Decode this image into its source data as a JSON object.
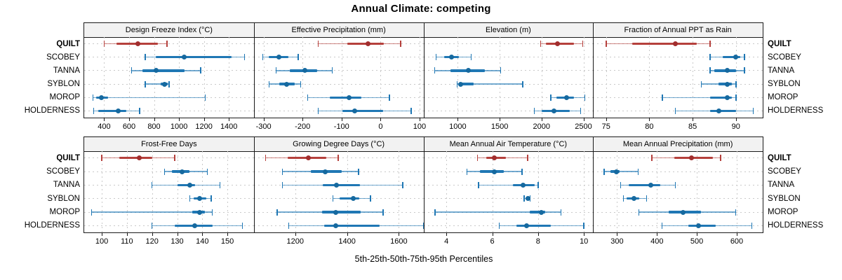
{
  "title": "Annual Climate: competing",
  "caption": "5th-25th-50th-75th-95th Percentiles",
  "sites": [
    "QUILT",
    "SCOBEY",
    "TANNA",
    "SYBLON",
    "MOROP",
    "HOLDERNESS"
  ],
  "highlight_site": "QUILT",
  "colors": {
    "highlight": "#b5403c",
    "highlight_dot": "#a12e2e",
    "normal": "#1f77b4",
    "normal_dot": "#16699f",
    "strip_bg": "#f2f2f2",
    "grid": "#c9c9c9",
    "border": "#1a1a1a"
  },
  "chart_data": {
    "type": "dotplot-percentiles",
    "layout": "2 rows x 4 columns trellis, sites on y-axis of every panel, shared site labels on outer left and right edges",
    "percentile_labels": [
      "5th",
      "25th",
      "50th",
      "75th",
      "95th"
    ],
    "rows": [
      "QUILT",
      "SCOBEY",
      "TANNA",
      "SYBLON",
      "MOROP",
      "HOLDERNESS"
    ],
    "panels": [
      {
        "title": "Design Freeze Index (°C)",
        "xlim": [
          240,
          1600
        ],
        "ticks": [
          400,
          600,
          800,
          1000,
          1200,
          1400
        ],
        "series": [
          {
            "name": "QUILT",
            "values": [
              400,
              500,
              670,
              830,
              905
            ]
          },
          {
            "name": "SCOBEY",
            "values": [
              730,
              815,
              1040,
              1420,
              1525
            ]
          },
          {
            "name": "TANNA",
            "values": [
              620,
              705,
              815,
              1045,
              1175
            ]
          },
          {
            "name": "SYBLON",
            "values": [
              730,
              855,
              885,
              910,
              920
            ]
          },
          {
            "name": "MOROP",
            "values": [
              310,
              335,
              375,
              430,
              1210
            ]
          },
          {
            "name": "HOLDERNESS",
            "values": [
              315,
              355,
              510,
              580,
              685
            ]
          }
        ]
      },
      {
        "title": "Effective Precipitation (mm)",
        "xlim": [
          -325,
          110
        ],
        "ticks": [
          -300,
          -200,
          -100,
          0,
          100
        ],
        "series": [
          {
            "name": "QUILT",
            "values": [
              -160,
              -85,
              -32,
              8,
              52
            ]
          },
          {
            "name": "SCOBEY",
            "values": [
              -302,
              -286,
              -261,
              -236,
              -211
            ]
          },
          {
            "name": "TANNA",
            "values": [
              -268,
              -232,
              -194,
              -163,
              -124
            ]
          },
          {
            "name": "SYBLON",
            "values": [
              -286,
              -259,
              -241,
              -220,
              -205
            ]
          },
          {
            "name": "MOROP",
            "values": [
              -187,
              -130,
              -81,
              -49,
              23
            ]
          },
          {
            "name": "HOLDERNESS",
            "values": [
              -160,
              -97,
              -67,
              7,
              79
            ]
          }
        ]
      },
      {
        "title": "Elevation (m)",
        "xlim": [
          590,
          2615
        ],
        "ticks": [
          1000,
          1500,
          2000,
          2500
        ],
        "series": [
          {
            "name": "QUILT",
            "values": [
              1990,
              2050,
              2190,
              2385,
              2490
            ]
          },
          {
            "name": "SCOBEY",
            "values": [
              740,
              840,
              925,
              1010,
              1160
            ]
          },
          {
            "name": "TANNA",
            "values": [
              725,
              910,
              1125,
              1325,
              1510
            ]
          },
          {
            "name": "SYBLON",
            "values": [
              990,
              1010,
              1035,
              1190,
              1775
            ]
          },
          {
            "name": "MOROP",
            "values": [
              2110,
              2175,
              2300,
              2385,
              2515
            ]
          },
          {
            "name": "HOLDERNESS",
            "values": [
              1915,
              2000,
              2150,
              2340,
              2465
            ]
          }
        ]
      },
      {
        "title": "Fraction of Annual PPT as Rain",
        "xlim": [
          73.5,
          93.1
        ],
        "ticks": [
          75,
          80,
          85,
          90
        ],
        "series": [
          {
            "name": "QUILT",
            "values": [
              75,
              78,
              83,
              85.5,
              87
            ]
          },
          {
            "name": "SCOBEY",
            "values": [
              87,
              88.5,
              90,
              90.5,
              91
            ]
          },
          {
            "name": "TANNA",
            "values": [
              87,
              87.5,
              89,
              90,
              91
            ]
          },
          {
            "name": "SYBLON",
            "values": [
              86,
              88,
              89,
              89.5,
              90
            ]
          },
          {
            "name": "MOROP",
            "values": [
              81.5,
              87,
              89,
              89.5,
              90
            ]
          },
          {
            "name": "HOLDERNESS",
            "values": [
              83,
              87,
              88,
              90,
              92
            ]
          }
        ]
      },
      {
        "title": "Frost-Free Days",
        "xlim": [
          93,
          160.5
        ],
        "ticks": [
          100,
          110,
          120,
          130,
          140,
          150
        ],
        "series": [
          {
            "name": "QUILT",
            "values": [
              100,
              107,
              115,
              120,
              129
            ]
          },
          {
            "name": "SCOBEY",
            "values": [
              125,
              128,
              132,
              135,
              142
            ]
          },
          {
            "name": "TANNA",
            "values": [
              120,
              130,
              135,
              137,
              147
            ]
          },
          {
            "name": "SYBLON",
            "values": [
              135,
              136.5,
              139,
              141.5,
              143.5
            ]
          },
          {
            "name": "MOROP",
            "values": [
              96,
              136,
              139,
              141,
              144
            ]
          },
          {
            "name": "HOLDERNESS",
            "values": [
              120,
              129,
              137,
              144,
              156
            ]
          }
        ]
      },
      {
        "title": "Growing Degree Days (°C)",
        "xlim": [
          1040,
          1695
        ],
        "ticks": [
          1200,
          1400,
          1600
        ],
        "series": [
          {
            "name": "QUILT",
            "values": [
              1085,
              1170,
              1250,
              1320,
              1365
            ]
          },
          {
            "name": "SCOBEY",
            "values": [
              1150,
              1260,
              1315,
              1380,
              1445
            ]
          },
          {
            "name": "TANNA",
            "values": [
              1150,
              1305,
              1360,
              1450,
              1615
            ]
          },
          {
            "name": "SYBLON",
            "values": [
              1345,
              1372,
              1425,
              1448,
              1490
            ]
          },
          {
            "name": "MOROP",
            "values": [
              1130,
              1303,
              1356,
              1452,
              1540
            ]
          },
          {
            "name": "HOLDERNESS",
            "values": [
              1175,
              1312,
              1355,
              1525,
              1695
            ]
          }
        ]
      },
      {
        "title": "Mean Annual Air Temperature (°C)",
        "xlim": [
          3.0,
          10.4
        ],
        "ticks": [
          4,
          6,
          8,
          10
        ],
        "series": [
          {
            "name": "QUILT",
            "values": [
              5.35,
              5.75,
              6.1,
              6.6,
              7.55
            ]
          },
          {
            "name": "SCOBEY",
            "values": [
              4.9,
              5.45,
              6.1,
              6.5,
              7.3
            ]
          },
          {
            "name": "TANNA",
            "values": [
              5.4,
              6.9,
              7.35,
              7.85,
              8.0
            ]
          },
          {
            "name": "SYBLON",
            "values": [
              7.4,
              7.45,
              7.55,
              7.6,
              7.65
            ]
          },
          {
            "name": "MOROP",
            "values": [
              3.5,
              7.65,
              8.15,
              8.3,
              9.0
            ]
          },
          {
            "name": "HOLDERNESS",
            "values": [
              6.3,
              7.05,
              7.5,
              8.55,
              10.0
            ]
          }
        ]
      },
      {
        "title": "Mean Annual Precipitation (mm)",
        "xlim": [
          240,
          665
        ],
        "ticks": [
          300,
          400,
          500,
          600
        ],
        "series": [
          {
            "name": "QUILT",
            "values": [
              387,
              443,
              487,
              540,
              560
            ]
          },
          {
            "name": "SCOBEY",
            "values": [
              268,
              284,
              299,
              307,
              353
            ]
          },
          {
            "name": "TANNA",
            "values": [
              309,
              330,
              384,
              408,
              446
            ]
          },
          {
            "name": "SYBLON",
            "values": [
              316,
              324,
              343,
              356,
              374
            ]
          },
          {
            "name": "MOROP",
            "values": [
              355,
              430,
              465,
              510,
              597
            ]
          },
          {
            "name": "HOLDERNESS",
            "values": [
              413,
              478,
              505,
              548,
              638
            ]
          }
        ]
      }
    ]
  }
}
